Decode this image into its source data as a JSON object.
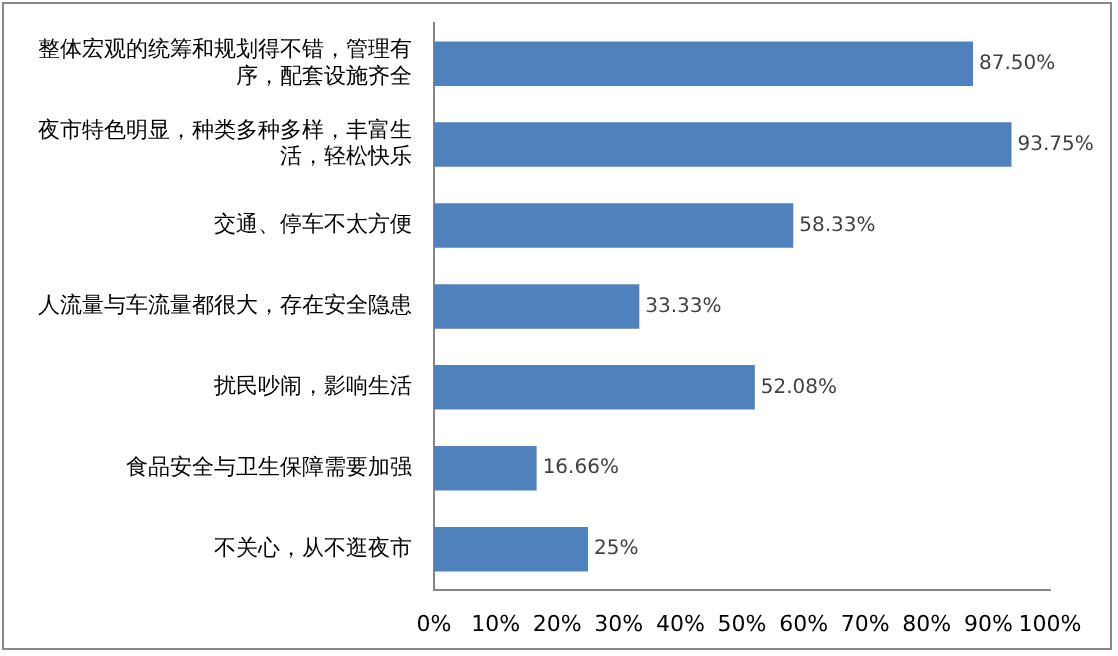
{
  "chart_data": {
    "type": "bar",
    "orientation": "horizontal",
    "categories": [
      "整体宏观的统筹和规划得不错，管理有序，配套设施齐全",
      "夜市特色明显，种类多种多样，丰富生活，轻松快乐",
      "交通、停车不太方便",
      "人流量与车流量都很大，存在安全隐患",
      "扰民吵闹，影响生活",
      "食品安全与卫生保障需要加强",
      "不关心，从不逛夜市"
    ],
    "values": [
      87.5,
      93.75,
      58.33,
      33.33,
      52.08,
      16.66,
      25
    ],
    "value_labels": [
      "87.50%",
      "93.75%",
      "58.33%",
      "33.33%",
      "52.08%",
      "16.66%",
      "25%"
    ],
    "color": "#4f81bd",
    "xlim": [
      0,
      100
    ],
    "xticks": [
      {
        "value": 0,
        "label": "0%"
      },
      {
        "value": 10,
        "label": "10%"
      },
      {
        "value": 20,
        "label": "20%"
      },
      {
        "value": 30,
        "label": "30%"
      },
      {
        "value": 40,
        "label": "40%"
      },
      {
        "value": 50,
        "label": "50%"
      },
      {
        "value": 60,
        "label": "60%"
      },
      {
        "value": 70,
        "label": "70%"
      },
      {
        "value": 80,
        "label": "80%"
      },
      {
        "value": 90,
        "label": "90%"
      },
      {
        "value": 100,
        "label": "100%"
      }
    ],
    "grid": false,
    "legend": false
  }
}
